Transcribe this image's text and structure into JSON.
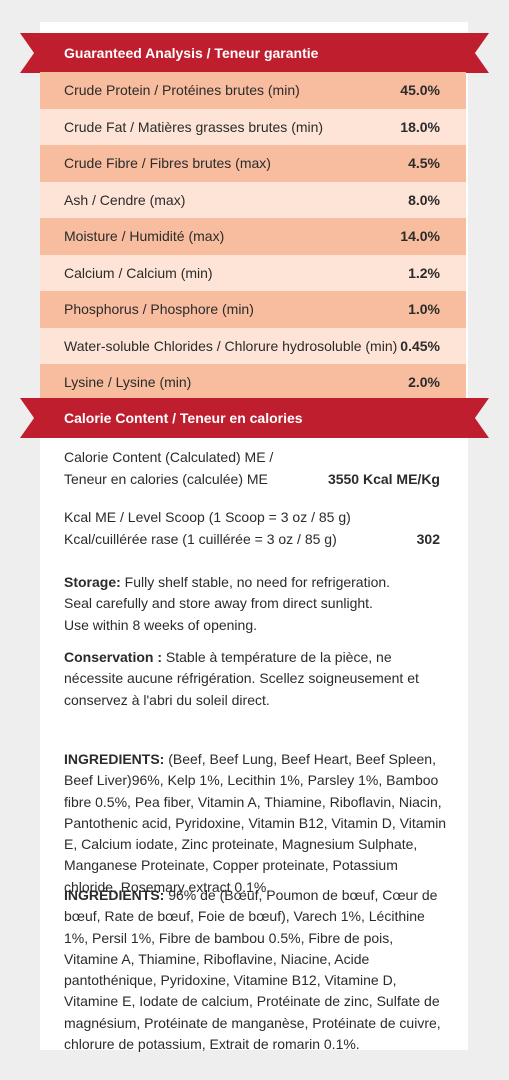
{
  "analysis": {
    "header": "Guaranteed Analysis / Teneur garantie",
    "rows": [
      {
        "label": "Crude Protein / Protéines brutes  (min)",
        "value": "45.0%"
      },
      {
        "label": "Crude Fat / Matières grasses brutes (min)",
        "value": "18.0%"
      },
      {
        "label": "Crude Fibre / Fibres brutes (max)",
        "value": "4.5%"
      },
      {
        "label": "Ash / Cendre (max)",
        "value": "8.0%"
      },
      {
        "label": "Moisture / Humidité (max)",
        "value": "14.0%"
      },
      {
        "label": "Calcium / Calcium  (min)",
        "value": "1.2%"
      },
      {
        "label": "Phosphorus / Phosphore (min)",
        "value": "1.0%"
      },
      {
        "label": "Water-soluble Chlorides / Chlorure hydrosoluble (min)",
        "value": "0.45%"
      },
      {
        "label": "Lysine / Lysine (min)",
        "value": "2.0%"
      }
    ]
  },
  "calorie": {
    "header": "Calorie Content  / Teneur en calories",
    "rows": [
      {
        "line1": "Calorie Content (Calculated) ME /",
        "line2": "Teneur en calories (calculée) ME",
        "value": "3550 Kcal ME/Kg"
      },
      {
        "line1": "Kcal ME / Level Scoop (1 Scoop = 3 oz / 85 g)",
        "line2": "Kcal/cuillérée rase (1 cuillérée = 3 oz / 85 g)",
        "value": "302"
      }
    ]
  },
  "storage": {
    "label": "Storage:",
    "text": " Fully shelf stable, no need for refrigeration. Seal carefully and store away from direct sunlight. Use within 8 weeks of opening."
  },
  "conservation": {
    "label": "Conservation :",
    "text": " Stable à température de la pièce, ne nécessite aucune réfrigération. Scellez soigneusement et conservez à l'abri du soleil direct."
  },
  "ingredients_en": {
    "label": "INGREDIENTS:",
    "text": " (Beef, Beef Lung, Beef Heart, Beef Spleen, Beef Liver)96%,  Kelp 1%, Lecithin 1%, Parsley 1%, Bamboo fibre 0.5%, Pea fiber, Vitamin A, Thiamine, Riboflavin, Niacin, Pantothenic acid, Pyridoxine, Vitamin B12, Vitamin D, Vitamin E, Calcium iodate, Zinc proteinate, Magnesium Sulphate, Manganese Proteinate, Copper proteinate, Potassium chloride, Rosemary extract 0.1%."
  },
  "ingredients_fr": {
    "label": "INGRÉDIENTS:",
    "text": " 96% de (Bœuf, Poumon de bœuf, Cœur de bœuf, Rate de bœuf, Foie de bœuf), Varech 1%, Lécithine 1%, Persil 1%, Fibre de bambou 0.5%, Fibre de pois, Vitamine A, Thiamine, Riboflavine, Niacine, Acide pantothénique, Pyridoxine, Vitamine B12, Vitamine D, Vitamine E, Iodate de calcium, Protéinate de zinc, Sulfate de magnésium, Protéinate de manganèse, Protéinate de cuivre, chlorure de potassium, Extrait de romarin 0.1%."
  },
  "colors": {
    "banner": "#bf1e2e",
    "row_dark": "#f8bd9f",
    "row_light": "#fde4d6",
    "background": "#eeeeee"
  }
}
